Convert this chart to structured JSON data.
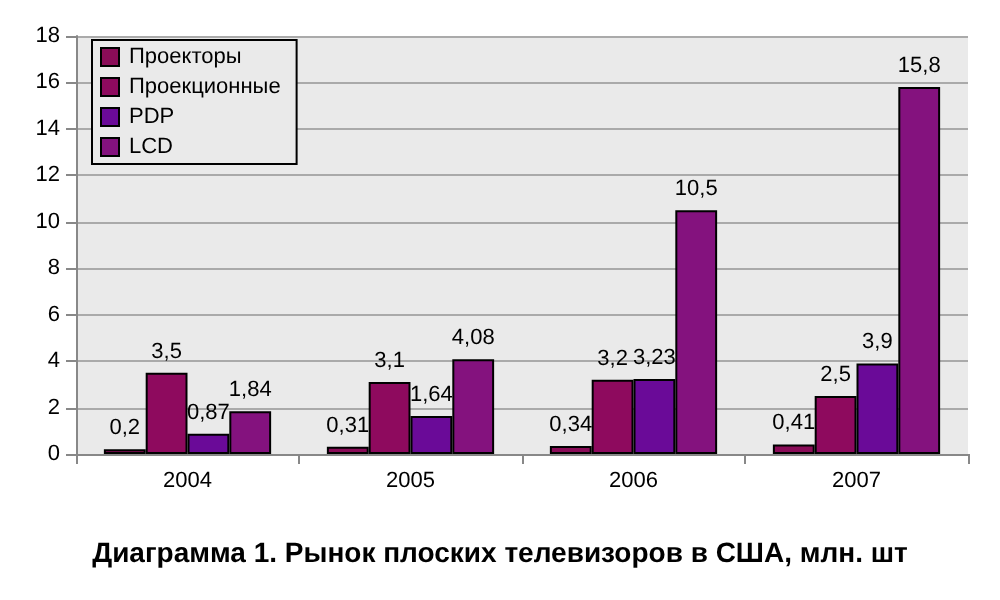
{
  "chart_data": {
    "type": "bar",
    "title": "Диаграмма 1. Рынок плоских телевизоров в США, млн. шт",
    "categories": [
      "2004",
      "2005",
      "2006",
      "2007"
    ],
    "series": [
      {
        "name": "Проекторы",
        "color": "#8a0c58",
        "values": [
          0.2,
          0.31,
          0.34,
          0.41
        ],
        "value_labels": [
          "0,2",
          "0,31",
          "0,34",
          "0,41"
        ]
      },
      {
        "name": "Проекционные",
        "color": "#8e0a5e",
        "values": [
          3.5,
          3.1,
          3.2,
          2.5
        ],
        "value_labels": [
          "3,5",
          "3,1",
          "3,2",
          "2,5"
        ]
      },
      {
        "name": "PDP",
        "color": "#6a0a98",
        "values": [
          0.87,
          1.64,
          3.23,
          3.9
        ],
        "value_labels": [
          "0,87",
          "1,64",
          "3,23",
          "3,9"
        ]
      },
      {
        "name": "LCD",
        "color": "#84127e",
        "values": [
          1.84,
          4.08,
          10.5,
          15.8
        ],
        "value_labels": [
          "1,84",
          "4,08",
          "10,5",
          "15,8"
        ]
      }
    ],
    "ylim": [
      0,
      18
    ],
    "yticks": [
      0,
      2,
      4,
      6,
      8,
      10,
      12,
      14,
      16,
      18
    ],
    "grid": "y",
    "legend": "top left"
  }
}
